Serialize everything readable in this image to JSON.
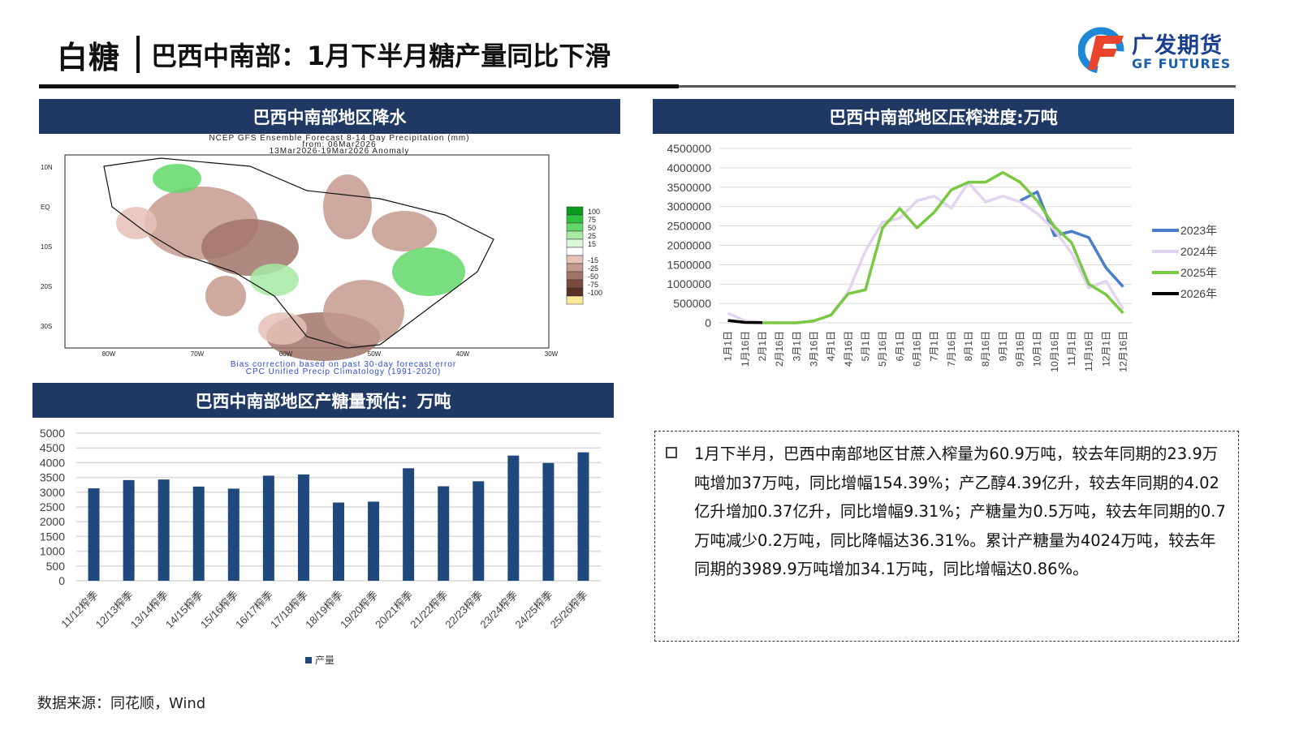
{
  "header": {
    "section": "白糖",
    "title": "巴西中南部：1月下半月糖产量同比下滑",
    "logo_cn": "广发期货",
    "logo_en": "GF FUTURES"
  },
  "map_panel": {
    "heading": "巴西中南部地区降水",
    "map_title": [
      "NCEP GFS Ensemble Forecast 8-14 Day Precipitation (mm)",
      "from: 06Mar2026",
      "13Mar2026-19Mar2026 Anomaly"
    ],
    "lat_ticks": [
      "10N",
      "EQ",
      "10S",
      "20S",
      "30S"
    ],
    "lon_ticks": [
      "80W",
      "70W",
      "60W",
      "50W",
      "40W",
      "30W"
    ],
    "legend": [
      {
        "v": "100",
        "c": "#0a9a1e"
      },
      {
        "v": "75",
        "c": "#2fc240"
      },
      {
        "v": "50",
        "c": "#62d86a"
      },
      {
        "v": "25",
        "c": "#a6eaa4"
      },
      {
        "v": "15",
        "c": "#dcf6d9"
      },
      {
        "v": "",
        "c": "#ffffff"
      },
      {
        "v": "-15",
        "c": "#e5c1b7"
      },
      {
        "v": "-25",
        "c": "#c49a8e"
      },
      {
        "v": "-50",
        "c": "#a17468"
      },
      {
        "v": "-75",
        "c": "#7a4a3e"
      },
      {
        "v": "-100",
        "c": "#5a3026"
      },
      {
        "v": "",
        "c": "#fde99a"
      }
    ],
    "footer": [
      "Bias correction based on past 30-day forecast error",
      "CPC Unified Precip Climatology (1991-2020)"
    ]
  },
  "chart_data": [
    {
      "type": "line",
      "title": "巴西中南部地区压榨进度:万吨",
      "ylim": [
        0,
        4500000
      ],
      "yticks": [
        0,
        500000,
        1000000,
        1500000,
        2000000,
        2500000,
        3000000,
        3500000,
        4000000,
        4500000
      ],
      "grid": true,
      "legend_position": "right",
      "categories": [
        "1月1日",
        "1月16日",
        "2月1日",
        "2月16日",
        "3月1日",
        "3月16日",
        "4月1日",
        "4月16日",
        "5月1日",
        "5月16日",
        "6月1日",
        "6月16日",
        "7月1日",
        "7月16日",
        "8月1日",
        "8月16日",
        "9月1日",
        "9月16日",
        "10月1日",
        "10月16日",
        "11月1日",
        "11月16日",
        "12月1日",
        "12月16日"
      ],
      "series": [
        {
          "name": "2023年",
          "color": "#4a7ec8",
          "values": [
            null,
            null,
            null,
            null,
            null,
            null,
            null,
            null,
            null,
            null,
            null,
            null,
            null,
            null,
            null,
            null,
            null,
            3150000,
            3380000,
            2250000,
            2360000,
            2200000,
            1420000,
            930000
          ]
        },
        {
          "name": "2024年",
          "color": "#e2d3ef",
          "values": [
            250000,
            50000,
            10000,
            0,
            0,
            50000,
            200000,
            800000,
            1850000,
            2600000,
            2700000,
            3150000,
            3270000,
            2960000,
            3620000,
            3120000,
            3270000,
            3120000,
            2820000,
            2400000,
            1800000,
            900000,
            1080000,
            350000
          ]
        },
        {
          "name": "2025年",
          "color": "#7ac943",
          "values": [
            null,
            null,
            0,
            0,
            0,
            50000,
            200000,
            750000,
            850000,
            2450000,
            2950000,
            2450000,
            2850000,
            3430000,
            3630000,
            3630000,
            3880000,
            3630000,
            3150000,
            2480000,
            2070000,
            1000000,
            730000,
            250000
          ]
        },
        {
          "name": "2026年",
          "color": "#000000",
          "values": [
            60000,
            10000,
            5000,
            null,
            null,
            null,
            null,
            null,
            null,
            null,
            null,
            null,
            null,
            null,
            null,
            null,
            null,
            null,
            null,
            null,
            null,
            null,
            null,
            null
          ]
        }
      ]
    },
    {
      "type": "bar",
      "title": "巴西中南部地区产糖量预估：万吨",
      "ylim": [
        0,
        5000
      ],
      "yticks": [
        0,
        500,
        1000,
        1500,
        2000,
        2500,
        3000,
        3500,
        4000,
        4500,
        5000
      ],
      "grid": true,
      "legend_position": "bottom",
      "categories": [
        "11/12榨季",
        "12/13榨季",
        "13/14榨季",
        "14/15榨季",
        "15/16榨季",
        "16/17榨季",
        "17/18榨季",
        "18/19榨季",
        "19/20榨季",
        "20/21榨季",
        "21/22榨季",
        "22/23榨季",
        "23/24榨季",
        "24/25榨季",
        "25/26榨季"
      ],
      "series": [
        {
          "name": "产量",
          "color": "#1f497d",
          "values": [
            3130,
            3410,
            3430,
            3190,
            3120,
            3560,
            3600,
            2650,
            2680,
            3810,
            3200,
            3370,
            4240,
            3990,
            4350
          ]
        }
      ]
    }
  ],
  "note": {
    "text": "1月下半月，巴西中南部地区甘蔗入榨量为60.9万吨，较去年同期的23.9万吨增加37万吨，同比增幅154.39%；产乙醇4.39亿升，较去年同期的4.02亿升增加0.37亿升，同比增幅9.31%；产糖量为0.5万吨，较去年同期的0.7万吨减少0.2万吨，同比降幅达36.31%。累计产糖量为4024万吨，较去年同期的3989.9万吨增加34.1万吨，同比增幅达0.86%。"
  },
  "source": "数据来源：同花顺，Wind"
}
